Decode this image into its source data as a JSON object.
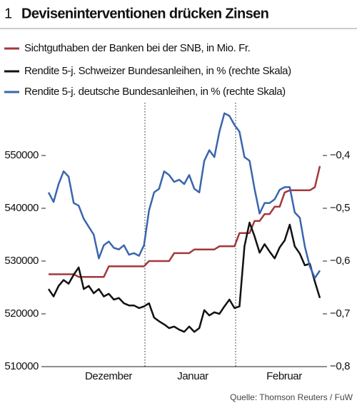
{
  "chart_data": {
    "type": "line",
    "number": "1",
    "title": "Deviseninterventionen drücken Zinsen",
    "source": "Quelle: Thomson Reuters / FuW",
    "month_labels": [
      "Dezember",
      "Januar",
      "Februar"
    ],
    "ylim": [
      510000,
      560000
    ],
    "yticks": [
      510000,
      520000,
      530000,
      540000,
      550000
    ],
    "y2lim": [
      -0.8,
      -0.3
    ],
    "y2ticks": [
      {
        "value": -0.8,
        "label": "−0,8"
      },
      {
        "value": -0.7,
        "label": "−0,7"
      },
      {
        "value": -0.6,
        "label": "−0,6"
      },
      {
        "value": -0.5,
        "label": "−0,5"
      },
      {
        "value": -0.4,
        "label": "−0,4"
      }
    ],
    "series": [
      {
        "name": "Sichtguthaben der Banken bei der SNB, in Mio. Fr.",
        "color": "#a3383c",
        "axis": "y",
        "values": [
          527500,
          527500,
          527500,
          527500,
          527500,
          527500,
          527000,
          527000,
          527000,
          527000,
          527000,
          527000,
          529000,
          529000,
          529000,
          529000,
          529000,
          529000,
          529000,
          529000,
          530000,
          530000,
          530000,
          530000,
          530000,
          531500,
          531500,
          531500,
          531500,
          532200,
          532200,
          532200,
          532200,
          532200,
          532800,
          532800,
          532800,
          532800,
          535300,
          535300,
          535300,
          537600,
          537600,
          538900,
          538900,
          540300,
          540300,
          543000,
          543400,
          543400,
          543400,
          543400,
          543400,
          544000,
          548000
        ]
      },
      {
        "name": "Rendite 5-j. Schweizer Bundesanleihen, in % (rechte Skala)",
        "color": "#111111",
        "axis": "y2",
        "values": [
          -0.653,
          -0.667,
          -0.647,
          -0.636,
          -0.643,
          -0.626,
          -0.612,
          -0.653,
          -0.647,
          -0.661,
          -0.653,
          -0.667,
          -0.662,
          -0.673,
          -0.67,
          -0.68,
          -0.684,
          -0.684,
          -0.689,
          -0.686,
          -0.68,
          -0.707,
          -0.714,
          -0.72,
          -0.727,
          -0.724,
          -0.73,
          -0.734,
          -0.724,
          -0.734,
          -0.727,
          -0.693,
          -0.703,
          -0.697,
          -0.7,
          -0.686,
          -0.673,
          -0.689,
          -0.686,
          -0.572,
          -0.527,
          -0.553,
          -0.584,
          -0.568,
          -0.582,
          -0.595,
          -0.574,
          -0.561,
          -0.531,
          -0.572,
          -0.586,
          -0.608,
          -0.605,
          -0.639,
          -0.67
        ]
      },
      {
        "name": "Rendite 5-j. deutsche Bundesanleihen, in % (rechte Skala)",
        "color": "#3a65ae",
        "axis": "y2",
        "values": [
          -0.47,
          -0.488,
          -0.454,
          -0.43,
          -0.44,
          -0.49,
          -0.495,
          -0.52,
          -0.535,
          -0.55,
          -0.595,
          -0.57,
          -0.563,
          -0.575,
          -0.578,
          -0.57,
          -0.588,
          -0.585,
          -0.59,
          -0.57,
          -0.504,
          -0.47,
          -0.463,
          -0.43,
          -0.437,
          -0.45,
          -0.446,
          -0.454,
          -0.437,
          -0.463,
          -0.47,
          -0.41,
          -0.39,
          -0.403,
          -0.355,
          -0.32,
          -0.325,
          -0.342,
          -0.355,
          -0.403,
          -0.41,
          -0.463,
          -0.51,
          -0.49,
          -0.49,
          -0.483,
          -0.465,
          -0.46,
          -0.46,
          -0.508,
          -0.518,
          -0.572,
          -0.61,
          -0.632,
          -0.618
        ]
      }
    ]
  }
}
